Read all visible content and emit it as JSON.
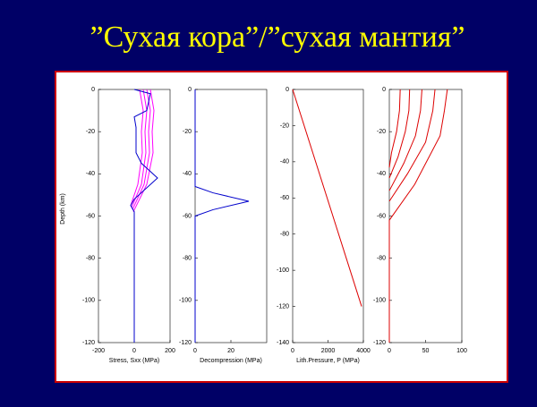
{
  "title": "”Сухая кора”/”сухая мантия”",
  "chart_data": [
    {
      "type": "line",
      "xlabel": "Stress, Sxx (MPa)",
      "ylabel": "Depth (km)",
      "xlim": [
        -200,
        200
      ],
      "xticks": [
        -200,
        0,
        200
      ],
      "ylim": [
        -120,
        0
      ],
      "yticks": [
        0,
        -20,
        -40,
        -60,
        -80,
        -100,
        -120
      ],
      "series": [
        {
          "color": "#ff00ff",
          "x": [
            30,
            50,
            40,
            45,
            20,
            -20
          ],
          "values": [
            0,
            -10,
            -20,
            -30,
            -45,
            -55
          ]
        },
        {
          "color": "#ff00ff",
          "x": [
            50,
            70,
            60,
            65,
            40,
            -15
          ],
          "values": [
            0,
            -10,
            -20,
            -30,
            -45,
            -56
          ]
        },
        {
          "color": "#ff00ff",
          "x": [
            70,
            90,
            80,
            85,
            55,
            -10
          ],
          "values": [
            0,
            -10,
            -20,
            -30,
            -45,
            -57
          ]
        },
        {
          "color": "#ff00ff",
          "x": [
            90,
            110,
            100,
            105,
            70,
            -5
          ],
          "values": [
            0,
            -10,
            -20,
            -30,
            -45,
            -58
          ]
        },
        {
          "color": "#0000cc",
          "x": [
            0,
            90,
            70,
            0,
            10,
            10,
            40,
            130,
            0,
            -20,
            0,
            0
          ],
          "values": [
            0,
            -2,
            -10,
            -13,
            -18,
            -30,
            -35,
            -42,
            -52,
            -55,
            -58,
            -120
          ]
        }
      ]
    },
    {
      "type": "line",
      "xlabel": "Decompression (MPa)",
      "xlim": [
        0,
        40
      ],
      "xticks": [
        0,
        20
      ],
      "ylim": [
        -120,
        0
      ],
      "yticks": [
        0,
        -20,
        -40,
        -60,
        -80,
        -100,
        -120
      ],
      "series": [
        {
          "color": "#0000cc",
          "x": [
            0,
            0,
            10,
            30,
            10,
            0,
            0
          ],
          "values": [
            0,
            -46,
            -49,
            -53,
            -57,
            -60,
            -120
          ]
        }
      ]
    },
    {
      "type": "line",
      "xlabel": "Lith.Pressure, P (MPa)",
      "xlim": [
        0,
        4000
      ],
      "xticks": [
        0,
        2000,
        4000
      ],
      "ylim": [
        -140,
        0
      ],
      "yticks": [
        0,
        -20,
        -40,
        -60,
        -80,
        -100,
        -120,
        -140
      ],
      "series": [
        {
          "color": "#dd0000",
          "x": [
            0,
            3900
          ],
          "values": [
            0,
            -120
          ]
        }
      ]
    },
    {
      "type": "line",
      "xlim": [
        0,
        100
      ],
      "xticks": [
        0,
        50,
        100
      ],
      "ylim": [
        -120,
        0
      ],
      "yticks": [
        0,
        -20,
        -40,
        -60,
        -80,
        -100,
        -120
      ],
      "series": [
        {
          "color": "#dd0000",
          "x": [
            15,
            14,
            10,
            3,
            0
          ],
          "values": [
            0,
            -10,
            -20,
            -30,
            -37
          ]
        },
        {
          "color": "#dd0000",
          "x": [
            28,
            27,
            22,
            12,
            0
          ],
          "values": [
            0,
            -10,
            -20,
            -32,
            -42
          ]
        },
        {
          "color": "#dd0000",
          "x": [
            45,
            43,
            36,
            20,
            0
          ],
          "values": [
            0,
            -10,
            -22,
            -35,
            -48
          ]
        },
        {
          "color": "#dd0000",
          "x": [
            63,
            60,
            50,
            25,
            0
          ],
          "values": [
            0,
            -10,
            -25,
            -40,
            -53
          ]
        },
        {
          "color": "#dd0000",
          "x": [
            80,
            76,
            70,
            35,
            0,
            0
          ],
          "values": [
            0,
            -10,
            -22,
            -45,
            -62,
            -120
          ]
        }
      ]
    }
  ]
}
